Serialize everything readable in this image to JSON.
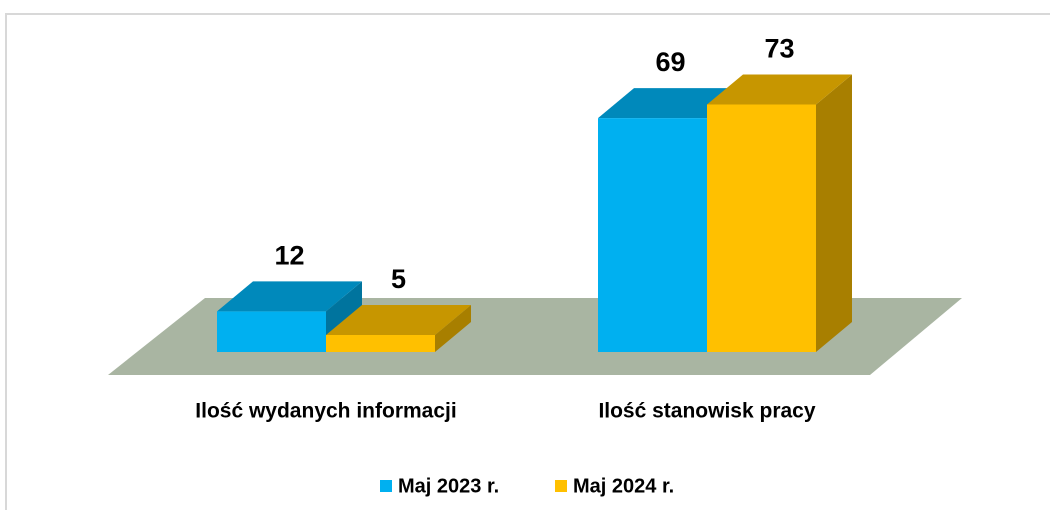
{
  "chart_data": {
    "type": "bar3d",
    "categories": [
      "Ilość wydanych informacji",
      "Ilość stanowisk pracy"
    ],
    "series": [
      {
        "name": "Maj 2023 r.",
        "color": "#00b0f0",
        "values": [
          12,
          69
        ]
      },
      {
        "name": "Maj 2024 r.",
        "color": "#ffc000",
        "values": [
          5,
          73
        ]
      }
    ]
  }
}
